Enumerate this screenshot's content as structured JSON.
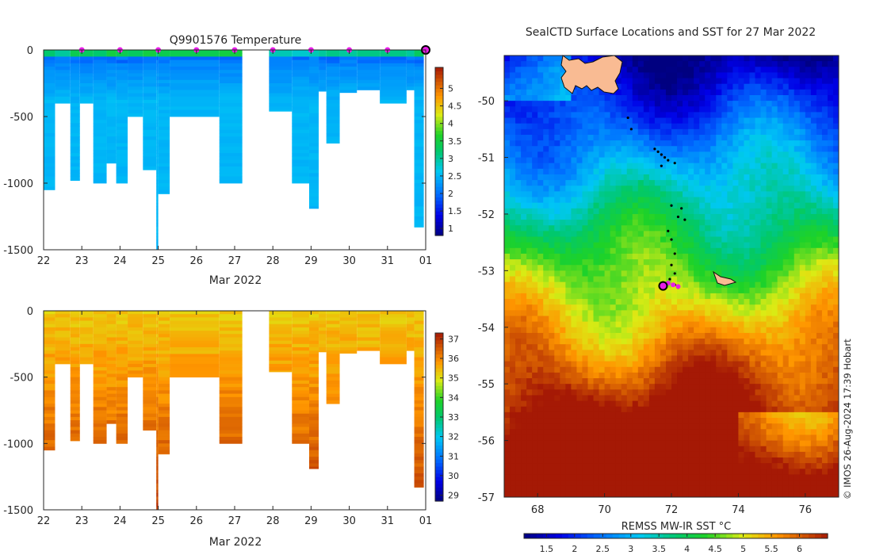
{
  "chart_data": [
    {
      "type": "heatmap",
      "title": "Q9901576  Temperature",
      "xlabel": "Mar 2022",
      "ylabel": "",
      "x_tick_labels": [
        "22",
        "23",
        "24",
        "25",
        "26",
        "27",
        "28",
        "29",
        "30",
        "31",
        "01"
      ],
      "y_tick_labels": [
        "0",
        "-500",
        "-1000",
        "-1500"
      ],
      "xlim": [
        22,
        32
      ],
      "ylim": [
        -1500,
        0
      ],
      "colorbar": {
        "ticks": [
          1,
          1.5,
          2,
          2.5,
          3,
          3.5,
          4,
          4.5,
          5
        ],
        "tick_labels": [
          "1",
          "1.5",
          "2",
          "2.5",
          "3",
          "3.5",
          "4",
          "4.5",
          "5"
        ],
        "range": [
          0.8,
          5.6
        ]
      },
      "profile_markers_day": [
        23,
        24,
        25,
        26,
        27,
        28,
        29,
        30,
        31
      ],
      "latest_marker_day": 32,
      "profiles": [
        {
          "start": 22.0,
          "end": 22.3,
          "depth": 1050,
          "surface": 3.2
        },
        {
          "start": 22.3,
          "end": 22.7,
          "depth": 400,
          "surface": 3.0
        },
        {
          "start": 22.7,
          "end": 22.95,
          "depth": 980,
          "surface": 3.4
        },
        {
          "start": 22.95,
          "end": 23.3,
          "depth": 400,
          "surface": 3.3
        },
        {
          "start": 23.3,
          "end": 23.65,
          "depth": 1000,
          "surface": 3.2
        },
        {
          "start": 23.65,
          "end": 23.9,
          "depth": 850,
          "surface": 3.5
        },
        {
          "start": 23.9,
          "end": 24.2,
          "depth": 1000,
          "surface": 3.4
        },
        {
          "start": 24.2,
          "end": 24.6,
          "depth": 500,
          "surface": 3.3
        },
        {
          "start": 24.6,
          "end": 24.95,
          "depth": 900,
          "surface": 3.5
        },
        {
          "start": 24.95,
          "end": 25.0,
          "depth": 1500,
          "surface": 3.1
        },
        {
          "start": 25.0,
          "end": 25.3,
          "depth": 1080,
          "surface": 3.4
        },
        {
          "start": 25.3,
          "end": 26.6,
          "depth": 500,
          "surface": 3.4
        },
        {
          "start": 26.6,
          "end": 27.2,
          "depth": 1000,
          "surface": 3.5
        },
        {
          "start": 27.9,
          "end": 28.5,
          "depth": 460,
          "surface": 2.9
        },
        {
          "start": 28.5,
          "end": 28.95,
          "depth": 1000,
          "surface": 2.8
        },
        {
          "start": 28.95,
          "end": 29.2,
          "depth": 1190,
          "surface": 2.9
        },
        {
          "start": 29.2,
          "end": 29.4,
          "depth": 310,
          "surface": 3.0
        },
        {
          "start": 29.4,
          "end": 29.75,
          "depth": 700,
          "surface": 3.1
        },
        {
          "start": 29.75,
          "end": 30.2,
          "depth": 320,
          "surface": 3.0
        },
        {
          "start": 30.2,
          "end": 30.8,
          "depth": 300,
          "surface": 3.1
        },
        {
          "start": 30.8,
          "end": 31.5,
          "depth": 400,
          "surface": 3.1
        },
        {
          "start": 31.5,
          "end": 31.7,
          "depth": 300,
          "surface": 3.0
        },
        {
          "start": 31.7,
          "end": 31.95,
          "depth": 1330,
          "surface": 3.3
        }
      ]
    },
    {
      "type": "heatmap",
      "title": "",
      "xlabel": "Mar 2022",
      "ylabel": "",
      "x_tick_labels": [
        "22",
        "23",
        "24",
        "25",
        "26",
        "27",
        "28",
        "29",
        "30",
        "31",
        "01"
      ],
      "y_tick_labels": [
        "0",
        "-500",
        "-1000",
        "-1500"
      ],
      "xlim": [
        22,
        32
      ],
      "ylim": [
        -1500,
        0
      ],
      "colorbar": {
        "ticks": [
          29,
          30,
          31,
          32,
          33,
          34,
          35,
          36,
          37
        ],
        "tick_labels": [
          "29",
          "30",
          "31",
          "32",
          "33",
          "34",
          "35",
          "36",
          "37"
        ],
        "range": [
          28.7,
          37.3
        ]
      }
    },
    {
      "type": "heatmap",
      "title": "SealCTD Surface Locations and SST for 27 Mar 2022",
      "xlabel": "",
      "ylabel": "",
      "x_tick_labels": [
        "68",
        "70",
        "72",
        "74",
        "76"
      ],
      "y_tick_labels": [
        "-50",
        "-51",
        "-52",
        "-53",
        "-54",
        "-55",
        "-56",
        "-57"
      ],
      "xlim": [
        67,
        77
      ],
      "ylim": [
        -57,
        -49.2
      ],
      "colorbar": {
        "label": "REMSS MW-IR SST °C",
        "ticks": [
          1.5,
          2,
          2.5,
          3,
          3.5,
          4,
          4.5,
          5,
          5.5,
          6
        ],
        "tick_labels": [
          "1.5",
          "2",
          "2.5",
          "3",
          "3.5",
          "4",
          "4.5",
          "5",
          "5.5",
          "6"
        ],
        "range": [
          1.1,
          6.5
        ]
      },
      "track_points": [
        [
          70.7,
          -50.3
        ],
        [
          70.8,
          -50.5
        ],
        [
          71.5,
          -50.85
        ],
        [
          71.6,
          -50.9
        ],
        [
          71.7,
          -50.95
        ],
        [
          71.8,
          -51.0
        ],
        [
          71.9,
          -51.05
        ],
        [
          72.1,
          -51.1
        ],
        [
          71.7,
          -51.15
        ],
        [
          72.0,
          -51.85
        ],
        [
          72.3,
          -51.9
        ],
        [
          72.2,
          -52.05
        ],
        [
          72.4,
          -52.1
        ],
        [
          71.9,
          -52.3
        ],
        [
          72.0,
          -52.45
        ],
        [
          72.1,
          -52.7
        ],
        [
          72.0,
          -52.9
        ],
        [
          72.1,
          -53.05
        ],
        [
          71.95,
          -53.15
        ],
        [
          72.1,
          -53.25
        ],
        [
          72.2,
          -53.3
        ]
      ],
      "recent_points": [
        [
          71.9,
          -53.22
        ],
        [
          72.05,
          -53.25
        ],
        [
          72.2,
          -53.28
        ]
      ],
      "latest_position": [
        71.75,
        -53.27
      ],
      "credit": "© IMOS 26-Aug-2024 17:39 Hobart"
    }
  ]
}
